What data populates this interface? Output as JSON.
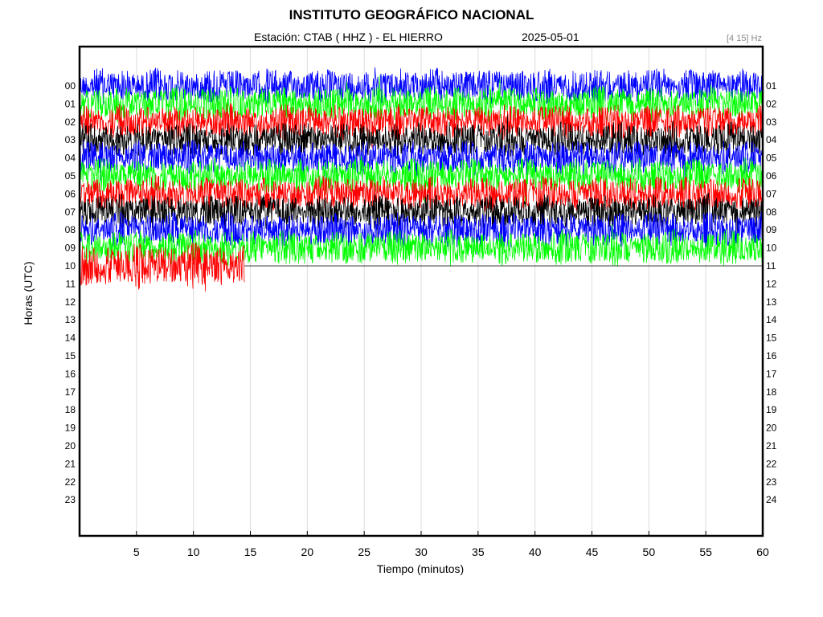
{
  "header": {
    "institution": "INSTITUTO GEOGRÁFICO NACIONAL",
    "station_line": "Estación:  CTAB ( HHZ ) - EL HIERRO",
    "date": "2025-05-01",
    "filter": "[4 15] Hz"
  },
  "chart_data": {
    "type": "line",
    "title": "INSTITUTO GEOGRÁFICO NACIONAL",
    "xlabel": "Tiempo (minutos)",
    "ylabel": "Horas (UTC)",
    "xlim": [
      0,
      60
    ],
    "x_ticks": [
      5,
      10,
      15,
      20,
      25,
      30,
      35,
      40,
      45,
      50,
      55,
      60
    ],
    "hours_left": [
      "00",
      "01",
      "02",
      "03",
      "04",
      "05",
      "06",
      "07",
      "08",
      "09",
      "10",
      "11",
      "12",
      "13",
      "14",
      "15",
      "16",
      "17",
      "18",
      "19",
      "20",
      "21",
      "22",
      "23"
    ],
    "hours_right": [
      "01",
      "02",
      "03",
      "04",
      "05",
      "06",
      "07",
      "08",
      "09",
      "10",
      "11",
      "12",
      "13",
      "14",
      "15",
      "16",
      "17",
      "18",
      "19",
      "20",
      "21",
      "22",
      "23",
      "24"
    ],
    "trace_colors": [
      "#0000ff",
      "#00ff00",
      "#ff0000",
      "#000000"
    ],
    "grid": "vertical",
    "series": [
      {
        "hour": 0,
        "color": "#0000ff",
        "end_minute": 60
      },
      {
        "hour": 1,
        "color": "#00ff00",
        "end_minute": 60
      },
      {
        "hour": 2,
        "color": "#ff0000",
        "end_minute": 60
      },
      {
        "hour": 3,
        "color": "#000000",
        "end_minute": 60
      },
      {
        "hour": 4,
        "color": "#0000ff",
        "end_minute": 60
      },
      {
        "hour": 5,
        "color": "#00ff00",
        "end_minute": 60
      },
      {
        "hour": 6,
        "color": "#ff0000",
        "end_minute": 60
      },
      {
        "hour": 7,
        "color": "#000000",
        "end_minute": 60
      },
      {
        "hour": 8,
        "color": "#0000ff",
        "end_minute": 60
      },
      {
        "hour": 9,
        "color": "#00ff00",
        "end_minute": 60
      },
      {
        "hour": 10,
        "color": "#ff0000",
        "end_minute": 14.5
      }
    ]
  }
}
